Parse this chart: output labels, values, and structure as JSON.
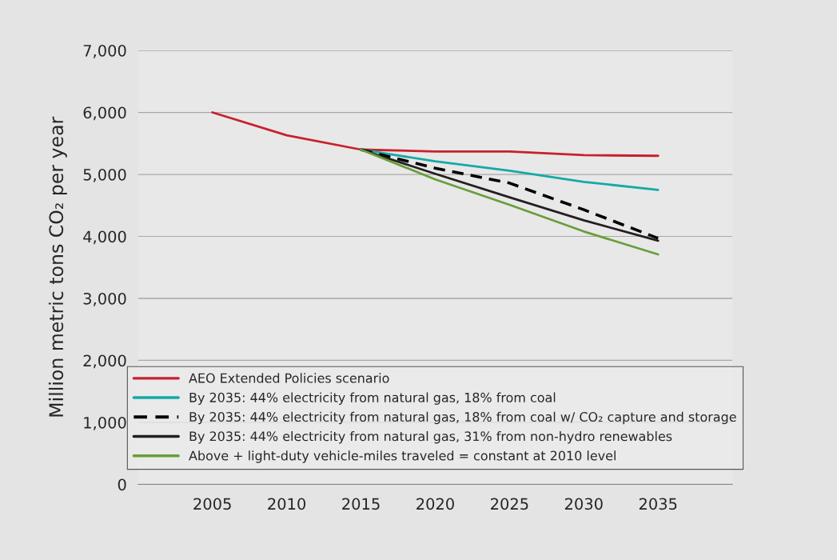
{
  "chart_data": {
    "type": "line",
    "ylabel": "Million metric tons CO₂ per year",
    "x": [
      2005,
      2010,
      2015,
      2020,
      2025,
      2030,
      2035
    ],
    "series": [
      {
        "name": "AEO Extended Policies scenario",
        "color": "#c8202e",
        "values": [
          6000,
          5630,
          5400,
          5370,
          5370,
          5310,
          5300
        ]
      },
      {
        "name": "By 2035: 44% electricity from natural gas, 18% from coal",
        "color": "#14aaa6",
        "values": [
          null,
          null,
          5400,
          5210,
          5060,
          4880,
          4750
        ]
      },
      {
        "name": "By 2035: 44% electricity from natural gas, 18% from coal w/ CO₂ capture and storage",
        "color": "#000000",
        "line_style": "dashed",
        "values": [
          null,
          null,
          5400,
          5100,
          4860,
          4430,
          3970
        ]
      },
      {
        "name": "By 2035: 44% electricity from natural gas, 31% from non-hydro renewables",
        "color": "#231f20",
        "values": [
          null,
          null,
          5400,
          5010,
          4630,
          4260,
          3930
        ]
      },
      {
        "name": "Above + light-duty vehicle-miles traveled = constant at 2010 level",
        "color": "#6a9e3a",
        "values": [
          null,
          null,
          5400,
          4920,
          4510,
          4080,
          3710
        ]
      }
    ],
    "xlim": [
      2000,
      2040
    ],
    "xticks": [
      2005,
      2010,
      2015,
      2020,
      2025,
      2030,
      2035
    ],
    "ylim": [
      0,
      7000
    ],
    "yticks": [
      0,
      {
        "value": 1000,
        "label": "1,000"
      },
      {
        "value": 2000,
        "label": "2,000"
      },
      {
        "value": 3000,
        "label": "3,000"
      },
      {
        "value": 4000,
        "label": "4,000"
      },
      {
        "value": 5000,
        "label": "5,000"
      },
      {
        "value": 6000,
        "label": "6,000"
      },
      {
        "value": 7000,
        "label": "7,000"
      }
    ],
    "grid": "y",
    "legend": "bottom",
    "line_style": "solid",
    "marker": "none"
  }
}
